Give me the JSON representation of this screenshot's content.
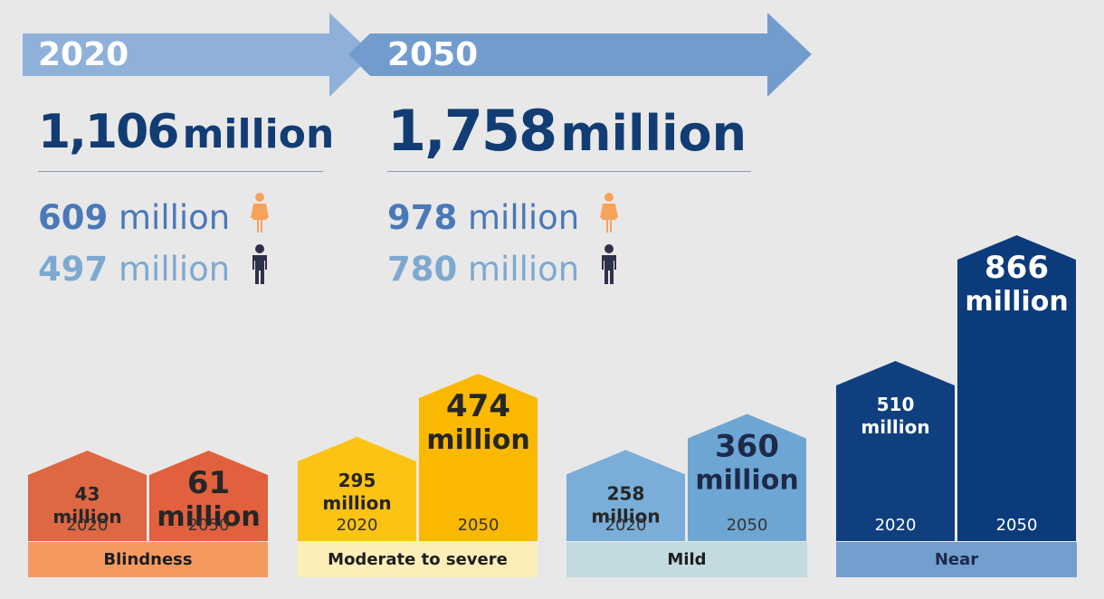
{
  "header": {
    "years": [
      "2020",
      "2050"
    ],
    "totals": [
      {
        "value": "1,106",
        "unit": "million"
      },
      {
        "value": "1,758",
        "unit": "million"
      }
    ],
    "female": [
      {
        "value": "609",
        "unit": "million"
      },
      {
        "value": "978",
        "unit": "million"
      }
    ],
    "male": [
      {
        "value": "497",
        "unit": "million"
      },
      {
        "value": "780",
        "unit": "million"
      }
    ]
  },
  "colors": {
    "arrow_2020": "#8fb1d9",
    "arrow_2050": "#729ccd",
    "title_blue": "#123d74",
    "female_icon": "#f7a35c",
    "male_icon": "#2f3049"
  },
  "chart_data": {
    "type": "bar",
    "categories": [
      "Blindness",
      "Moderate to severe",
      "Mild",
      "Near"
    ],
    "x": [
      "2020",
      "2050"
    ],
    "series": [
      {
        "name": "2020",
        "values": [
          43,
          295,
          258,
          510
        ]
      },
      {
        "name": "2050",
        "values": [
          61,
          474,
          360,
          866
        ]
      }
    ],
    "value_labels": [
      {
        "2020": [
          "43",
          "million"
        ],
        "2050": [
          "61",
          "million"
        ]
      },
      {
        "2020": [
          "295",
          "million"
        ],
        "2050": [
          "474",
          "million"
        ]
      },
      {
        "2020": [
          "258",
          "million"
        ],
        "2050": [
          "360",
          "million"
        ]
      },
      {
        "2020": [
          "510",
          "million"
        ],
        "2050": [
          "866",
          "million"
        ]
      }
    ],
    "colors": [
      {
        "bar2020": "#dd6843",
        "bar2050": "#e1603d",
        "label_bg": "#f59a5f",
        "text2020": "#262626",
        "text2050": "#262626",
        "tick": "#333333"
      },
      {
        "bar2020": "#fcc314",
        "bar2050": "#fbb800",
        "label_bg": "#fceeb7",
        "text2020": "#262626",
        "text2050": "#262626",
        "tick": "#333333"
      },
      {
        "bar2020": "#7aaed8",
        "bar2050": "#6ea6d3",
        "label_bg": "#c2dae0",
        "text2020": "#262626",
        "text2050": "#1d2a4a",
        "tick": "#333333"
      },
      {
        "bar2020": "#0f3f7e",
        "bar2050": "#0b3b7b",
        "label_bg": "#739fcf",
        "text2020": "#ffffff",
        "text2050": "#ffffff",
        "tick": "#ffffff"
      }
    ],
    "title": "",
    "xlabel": "",
    "ylabel": ""
  }
}
